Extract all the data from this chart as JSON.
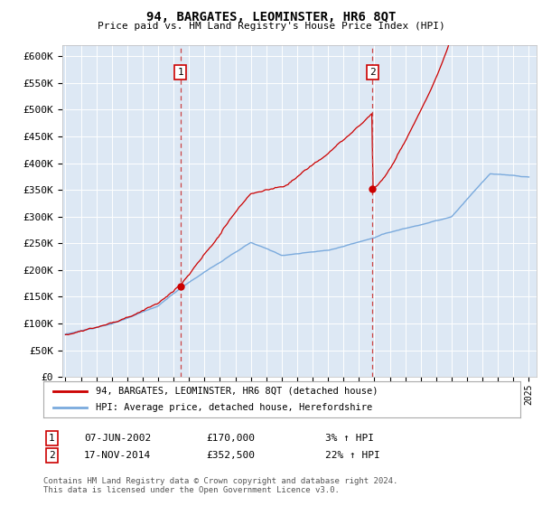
{
  "title": "94, BARGATES, LEOMINSTER, HR6 8QT",
  "subtitle": "Price paid vs. HM Land Registry's House Price Index (HPI)",
  "ylabel_ticks": [
    "£0",
    "£50K",
    "£100K",
    "£150K",
    "£200K",
    "£250K",
    "£300K",
    "£350K",
    "£400K",
    "£450K",
    "£500K",
    "£550K",
    "£600K"
  ],
  "ytick_values": [
    0,
    50000,
    100000,
    150000,
    200000,
    250000,
    300000,
    350000,
    400000,
    450000,
    500000,
    550000,
    600000
  ],
  "ylim": [
    0,
    620000
  ],
  "xlim_start": 1994.8,
  "xlim_end": 2025.5,
  "hpi_color": "#7aaadd",
  "price_color": "#cc0000",
  "bg_color": "#dde8f4",
  "grid_color": "#ffffff",
  "marker1_year": 2002.44,
  "marker1_price": 170000,
  "marker2_year": 2014.88,
  "marker2_price": 352500,
  "legend_line1": "94, BARGATES, LEOMINSTER, HR6 8QT (detached house)",
  "legend_line2": "HPI: Average price, detached house, Herefordshire",
  "annotation1_num": "1",
  "annotation1_date": "07-JUN-2002",
  "annotation1_price": "£170,000",
  "annotation1_hpi": "3% ↑ HPI",
  "annotation2_num": "2",
  "annotation2_date": "17-NOV-2014",
  "annotation2_price": "£352,500",
  "annotation2_hpi": "22% ↑ HPI",
  "footer": "Contains HM Land Registry data © Crown copyright and database right 2024.\nThis data is licensed under the Open Government Licence v3.0."
}
